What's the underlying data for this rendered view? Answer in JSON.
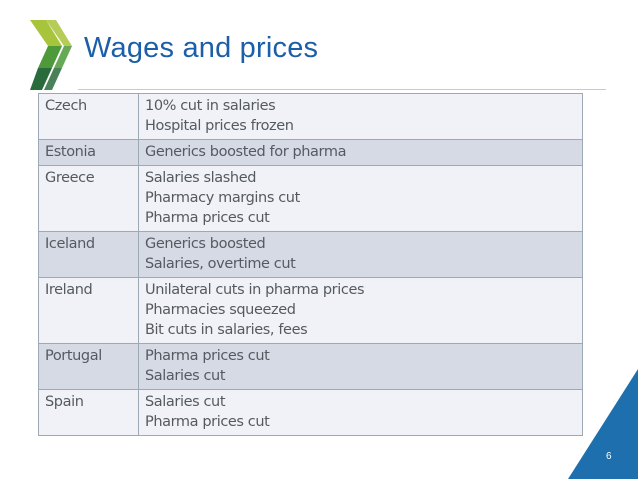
{
  "slide": {
    "title": "Wages and prices",
    "page_number": "6"
  },
  "colors": {
    "title": "#1b5fa8",
    "logo_light": "#a8c43b",
    "logo_mid": "#4e9a3a",
    "logo_dark": "#2a6b3b",
    "row_shaded": "#d5dae4",
    "row_plain": "#f0f2f7",
    "corner": "#1d6fae"
  },
  "table": {
    "rows": [
      {
        "country": "Czech",
        "lines": [
          "10% cut in salaries",
          "Hospital prices frozen"
        ],
        "shaded": false
      },
      {
        "country": "Estonia",
        "lines": [
          "Generics boosted for pharma"
        ],
        "shaded": true
      },
      {
        "country": "Greece",
        "lines": [
          "Salaries slashed",
          "Pharmacy margins cut",
          "Pharma prices cut"
        ],
        "shaded": false
      },
      {
        "country": "Iceland",
        "lines": [
          "Generics boosted",
          "Salaries, overtime cut"
        ],
        "shaded": true
      },
      {
        "country": "Ireland",
        "lines": [
          "Unilateral cuts in pharma prices",
          "Pharmacies squeezed",
          "Bit cuts in salaries, fees"
        ],
        "shaded": false
      },
      {
        "country": "Portugal",
        "lines": [
          "Pharma prices cut",
          "Salaries cut"
        ],
        "shaded": true
      },
      {
        "country": "Spain",
        "lines": [
          "Salaries cut",
          "Pharma prices cut"
        ],
        "shaded": false
      }
    ]
  }
}
